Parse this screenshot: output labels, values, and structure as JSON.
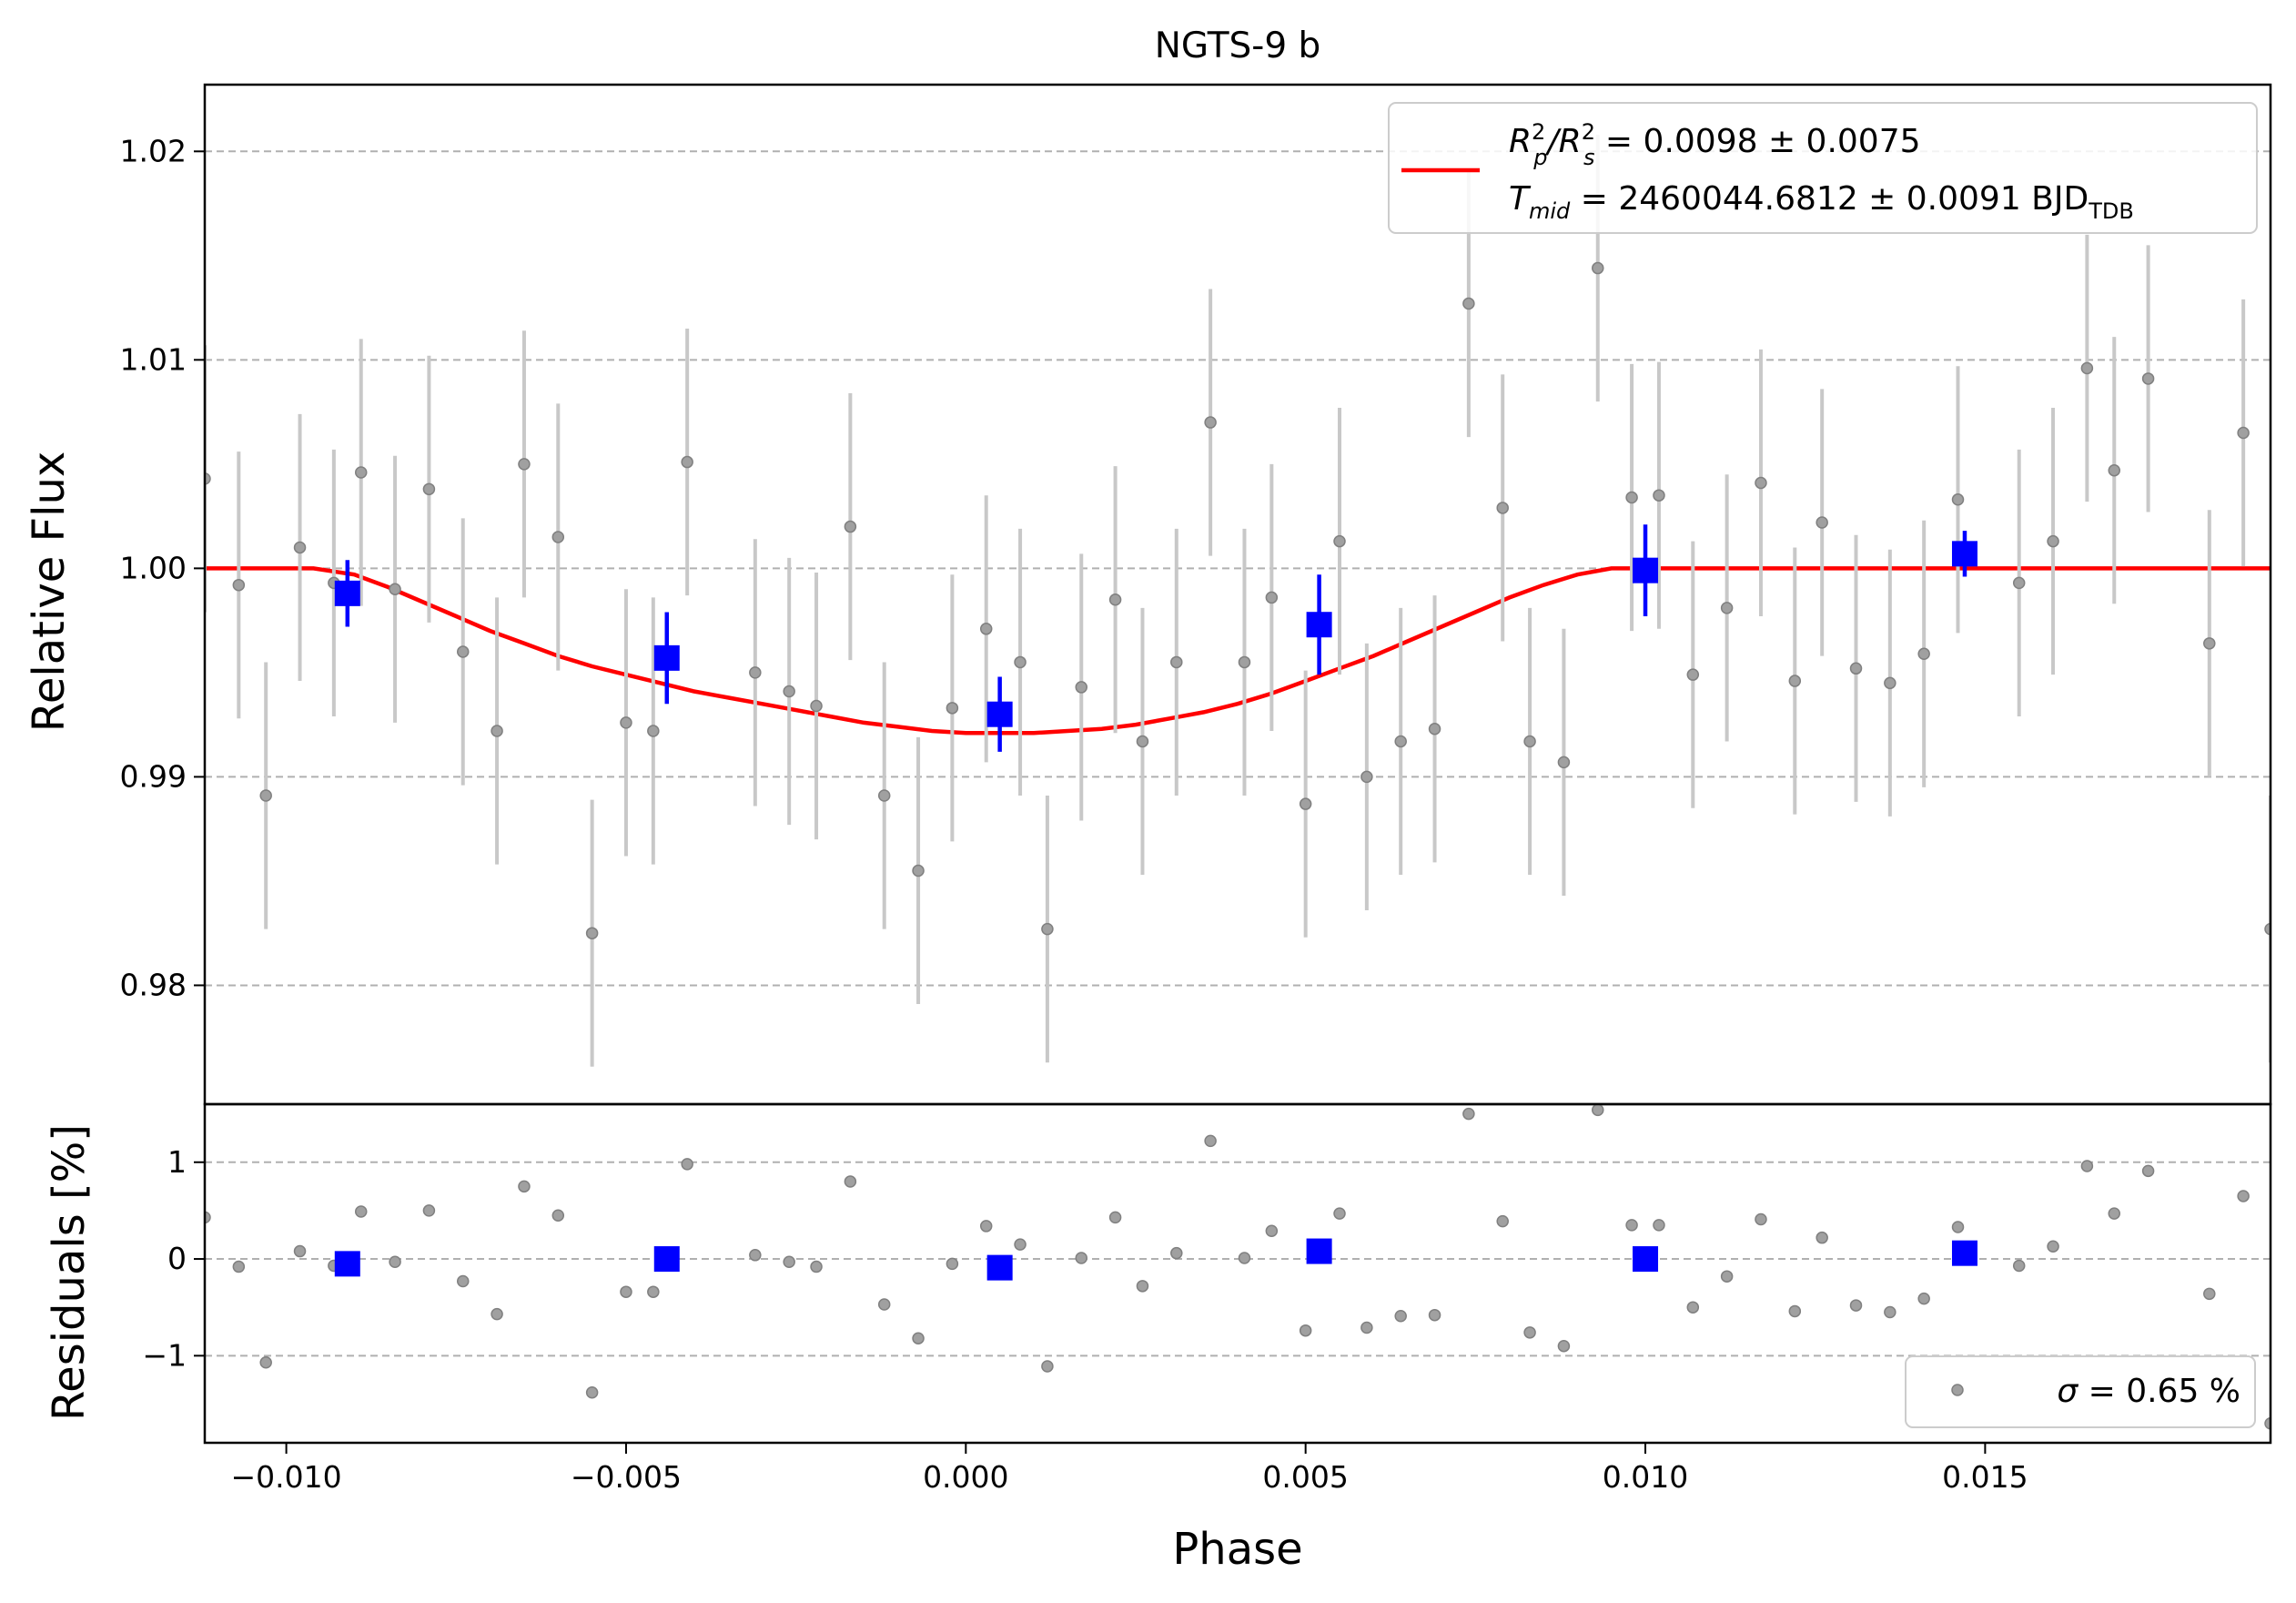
{
  "chart_data": [
    {
      "type": "scatter",
      "title": "NGTS-9 b",
      "xlabel": "",
      "ylabel": "Relative Flux",
      "xlim": [
        -0.0112,
        0.0192
      ],
      "ylim": [
        0.9743,
        1.0232
      ],
      "x_ticks": [
        -0.01,
        -0.005,
        0.0,
        0.005,
        0.01,
        0.015
      ],
      "y_ticks": [
        0.98,
        0.99,
        1.0,
        1.01,
        1.02
      ],
      "y_tick_labels": [
        "0.98",
        "0.99",
        "1.00",
        "1.01",
        "1.02"
      ],
      "grid": "horizontal dashed",
      "legend_position": "top-right",
      "legend": {
        "model_line1": "R²_p/R²_s = 0.0098 ± 0.0075",
        "model_line2": "T_mid = 2460044.6812 ± 0.0091 BJD_TDB",
        "line1_main": "R",
        "line1_sup1": "2",
        "line1_sub1": "p",
        "line1_slash": "/R",
        "line1_sup2": "2",
        "line1_sub2": "s",
        "line1_rest": " = 0.0098 ± 0.0075",
        "line2_main": "T",
        "line2_sub": "mid",
        "line2_rest": " = 2460044.6812 ± 0.0091 BJD",
        "line2_sub2": "TDB"
      },
      "colors": {
        "data": "#808080",
        "errorbar": "#c8c8c8",
        "binned": "#0000ff",
        "model": "#ff0000"
      },
      "series": [
        {
          "kind": "data",
          "x": [
            -0.0112,
            -0.0107,
            -0.0103,
            -0.0098,
            -0.0093,
            -0.0089,
            -0.0084,
            -0.0079,
            -0.0074,
            -0.0069,
            -0.0065,
            -0.006,
            -0.0055,
            -0.005,
            -0.0046,
            -0.0041,
            -0.0031,
            -0.0026,
            -0.0022,
            -0.0017,
            -0.0012,
            -0.0007,
            -0.0002,
            0.0003,
            0.0008,
            0.0012,
            0.0017,
            0.0022,
            0.0026,
            0.0031,
            0.0036,
            0.0041,
            0.0045,
            0.005,
            0.0055,
            0.0059,
            0.0064,
            0.0069,
            0.0074,
            0.0079,
            0.0083,
            0.0088,
            0.0093,
            0.0098,
            0.0102,
            0.0107,
            0.0112,
            0.0117,
            0.0122,
            0.0126,
            0.0131,
            0.0136,
            0.0141,
            0.0146,
            0.0155,
            0.016,
            0.0165,
            0.0169,
            0.0174,
            0.0183,
            0.0188,
            0.0192
          ],
          "y": [
            1.0043,
            0.9992,
            0.9891,
            1.001,
            0.9993,
            1.0046,
            0.999,
            1.0038,
            0.996,
            0.9922,
            1.005,
            1.0015,
            0.9825,
            0.9926,
            0.9922,
            1.0051,
            0.995,
            0.9941,
            0.9934,
            1.002,
            0.9891,
            0.9855,
            0.9933,
            0.9971,
            0.9955,
            0.9827,
            0.9943,
            0.9985,
            0.9917,
            0.9955,
            1.007,
            0.9955,
            0.9986,
            0.9887,
            1.0013,
            0.99,
            0.9917,
            0.9923,
            1.0127,
            1.0029,
            0.9917,
            0.9907,
            1.0144,
            1.0034,
            1.0035,
            0.9949,
            0.9981,
            1.0041,
            0.9946,
            1.0022,
            0.9952,
            0.9945,
            0.9959,
            1.0033,
            0.9993,
            1.0013,
            1.0096,
            1.0047,
            1.0091,
            0.9964,
            1.0065,
            0.9827
          ],
          "err": [
            0.0064,
            0.0064,
            0.0064,
            0.0064,
            0.0064,
            0.0064,
            0.0064,
            0.0064,
            0.0064,
            0.0064,
            0.0064,
            0.0064,
            0.0064,
            0.0064,
            0.0064,
            0.0064,
            0.0064,
            0.0064,
            0.0064,
            0.0064,
            0.0064,
            0.0064,
            0.0064,
            0.0064,
            0.0064,
            0.0064,
            0.0064,
            0.0064,
            0.0064,
            0.0064,
            0.0064,
            0.0064,
            0.0064,
            0.0064,
            0.0064,
            0.0064,
            0.0064,
            0.0064,
            0.0064,
            0.0064,
            0.0064,
            0.0064,
            0.0064,
            0.0064,
            0.0064,
            0.0064,
            0.0064,
            0.0064,
            0.0064,
            0.0064,
            0.0064,
            0.0064,
            0.0064,
            0.0064,
            0.0064,
            0.0064,
            0.0064,
            0.0064,
            0.0064,
            0.0064,
            0.0064,
            0.0064
          ]
        },
        {
          "kind": "binned",
          "x": [
            -0.0091,
            -0.0044,
            0.0005,
            0.0052,
            0.01,
            0.0147
          ],
          "y": [
            0.9988,
            0.9957,
            0.993,
            0.9973,
            0.9999,
            1.0007
          ],
          "err": [
            0.0016,
            0.0022,
            0.0018,
            0.0024,
            0.0022,
            0.0011
          ]
        },
        {
          "kind": "model",
          "x": [
            -0.0112,
            -0.0096,
            -0.009,
            -0.0085,
            -0.008,
            -0.0075,
            -0.007,
            -0.0065,
            -0.006,
            -0.0055,
            -0.005,
            -0.0045,
            -0.004,
            -0.0035,
            -0.003,
            -0.0025,
            -0.002,
            -0.0015,
            -0.001,
            -0.0005,
            0.0,
            0.0005,
            0.001,
            0.0015,
            0.002,
            0.0025,
            0.003,
            0.0035,
            0.004,
            0.0045,
            0.005,
            0.0055,
            0.006,
            0.0065,
            0.007,
            0.0075,
            0.008,
            0.0085,
            0.009,
            0.0095,
            0.0192
          ],
          "y": [
            1.0,
            1.0,
            0.9997,
            0.9991,
            0.9984,
            0.9977,
            0.997,
            0.9964,
            0.9958,
            0.9953,
            0.9949,
            0.9945,
            0.9941,
            0.9938,
            0.9935,
            0.9932,
            0.9929,
            0.9926,
            0.9924,
            0.9922,
            0.9921,
            0.9921,
            0.9921,
            0.9922,
            0.9923,
            0.9925,
            0.9928,
            0.9931,
            0.9935,
            0.994,
            0.9946,
            0.9952,
            0.9958,
            0.9965,
            0.9972,
            0.9979,
            0.9986,
            0.9992,
            0.9997,
            1.0,
            1.0
          ]
        }
      ]
    },
    {
      "type": "scatter",
      "title": "",
      "xlabel": "Phase",
      "ylabel": "Residuals [%]",
      "xlim": [
        -0.0112,
        0.0192
      ],
      "ylim": [
        -1.9,
        1.6
      ],
      "x_ticks": [
        -0.01,
        -0.005,
        0.0,
        0.005,
        0.01,
        0.015
      ],
      "x_tick_labels": [
        "−0.010",
        "−0.005",
        "0.000",
        "0.005",
        "0.010",
        "0.015"
      ],
      "y_ticks": [
        -1,
        0,
        1
      ],
      "y_tick_labels": [
        "−1",
        "0",
        "1"
      ],
      "grid": "horizontal dashed",
      "legend_position": "bottom-right",
      "legend": {
        "sigma_symbol": "σ",
        "sigma_rest": " = 0.65 %"
      },
      "series": [
        {
          "kind": "data",
          "x": [
            -0.0112,
            -0.0107,
            -0.0103,
            -0.0098,
            -0.0093,
            -0.0089,
            -0.0084,
            -0.0079,
            -0.0074,
            -0.0069,
            -0.0065,
            -0.006,
            -0.0055,
            -0.005,
            -0.0046,
            -0.0041,
            -0.0031,
            -0.0026,
            -0.0022,
            -0.0017,
            -0.0012,
            -0.0007,
            -0.0002,
            0.0003,
            0.0008,
            0.0012,
            0.0017,
            0.0022,
            0.0026,
            0.0031,
            0.0036,
            0.0041,
            0.0045,
            0.005,
            0.0055,
            0.0059,
            0.0064,
            0.0069,
            0.0074,
            0.0079,
            0.0083,
            0.0088,
            0.0093,
            0.0098,
            0.0102,
            0.0107,
            0.0112,
            0.0117,
            0.0122,
            0.0126,
            0.0131,
            0.0136,
            0.0141,
            0.0146,
            0.0155,
            0.016,
            0.0165,
            0.0169,
            0.0174,
            0.0183,
            0.0188,
            0.0192
          ],
          "y": [
            0.43,
            -0.08,
            -1.07,
            0.08,
            -0.07,
            0.49,
            -0.03,
            0.5,
            -0.23,
            -0.57,
            0.75,
            0.45,
            -1.38,
            -0.34,
            -0.34,
            0.98,
            0.04,
            -0.03,
            -0.08,
            0.8,
            -0.47,
            -0.82,
            -0.05,
            0.34,
            0.15,
            -1.11,
            0.01,
            0.43,
            -0.28,
            0.06,
            1.22,
            0.01,
            0.29,
            -0.74,
            0.47,
            -0.71,
            -0.59,
            -0.58,
            1.5,
            0.39,
            -0.76,
            -0.9,
            1.54,
            0.35,
            0.35,
            -0.5,
            -0.18,
            0.41,
            -0.54,
            0.22,
            -0.48,
            -0.55,
            -0.41,
            0.33,
            -0.07,
            0.13,
            0.96,
            0.47,
            0.91,
            -0.36,
            0.65,
            -1.7
          ]
        },
        {
          "kind": "binned",
          "x": [
            -0.0091,
            -0.0044,
            0.0005,
            0.0052,
            0.01,
            0.0147
          ],
          "y": [
            -0.05,
            0.0,
            -0.09,
            0.08,
            0.0,
            0.06
          ]
        }
      ]
    }
  ]
}
